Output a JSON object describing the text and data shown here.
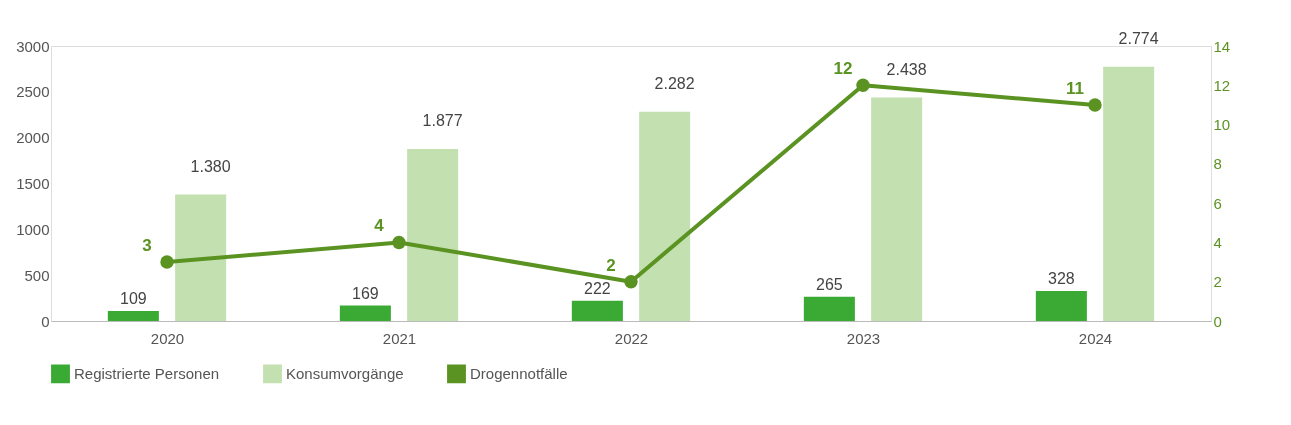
{
  "chart_data": {
    "type": "bar",
    "categories": [
      "2020",
      "2021",
      "2022",
      "2023",
      "2024"
    ],
    "series": [
      {
        "name": "Registrierte Personen",
        "color": "#3aaa35",
        "values": [
          109,
          169,
          222,
          265,
          328
        ],
        "value_labels": [
          "109",
          "169",
          "222",
          "265",
          "328"
        ]
      },
      {
        "name": "Konsumvorgänge",
        "color": "#c3e0b0",
        "values": [
          1380,
          1877,
          2282,
          2438,
          2774
        ],
        "value_labels": [
          "1.380",
          "1.877",
          "2.282",
          "2.438",
          "2.774"
        ]
      },
      {
        "name": "Drogennotfälle",
        "type": "line",
        "axis": "y2",
        "color": "#5b9322",
        "marker": "circle",
        "values": [
          3,
          4,
          2,
          12,
          11
        ],
        "value_labels": [
          "3",
          "4",
          "2",
          "12",
          "11"
        ]
      }
    ],
    "ylim": [
      0,
      3000
    ],
    "yticks": [
      0,
      500,
      1000,
      1500,
      2000,
      2500,
      3000
    ],
    "y2lim": [
      0,
      14
    ],
    "y2ticks": [
      0,
      2,
      4,
      6,
      8,
      10,
      12,
      14
    ],
    "grid": false,
    "legend": "bottom"
  }
}
